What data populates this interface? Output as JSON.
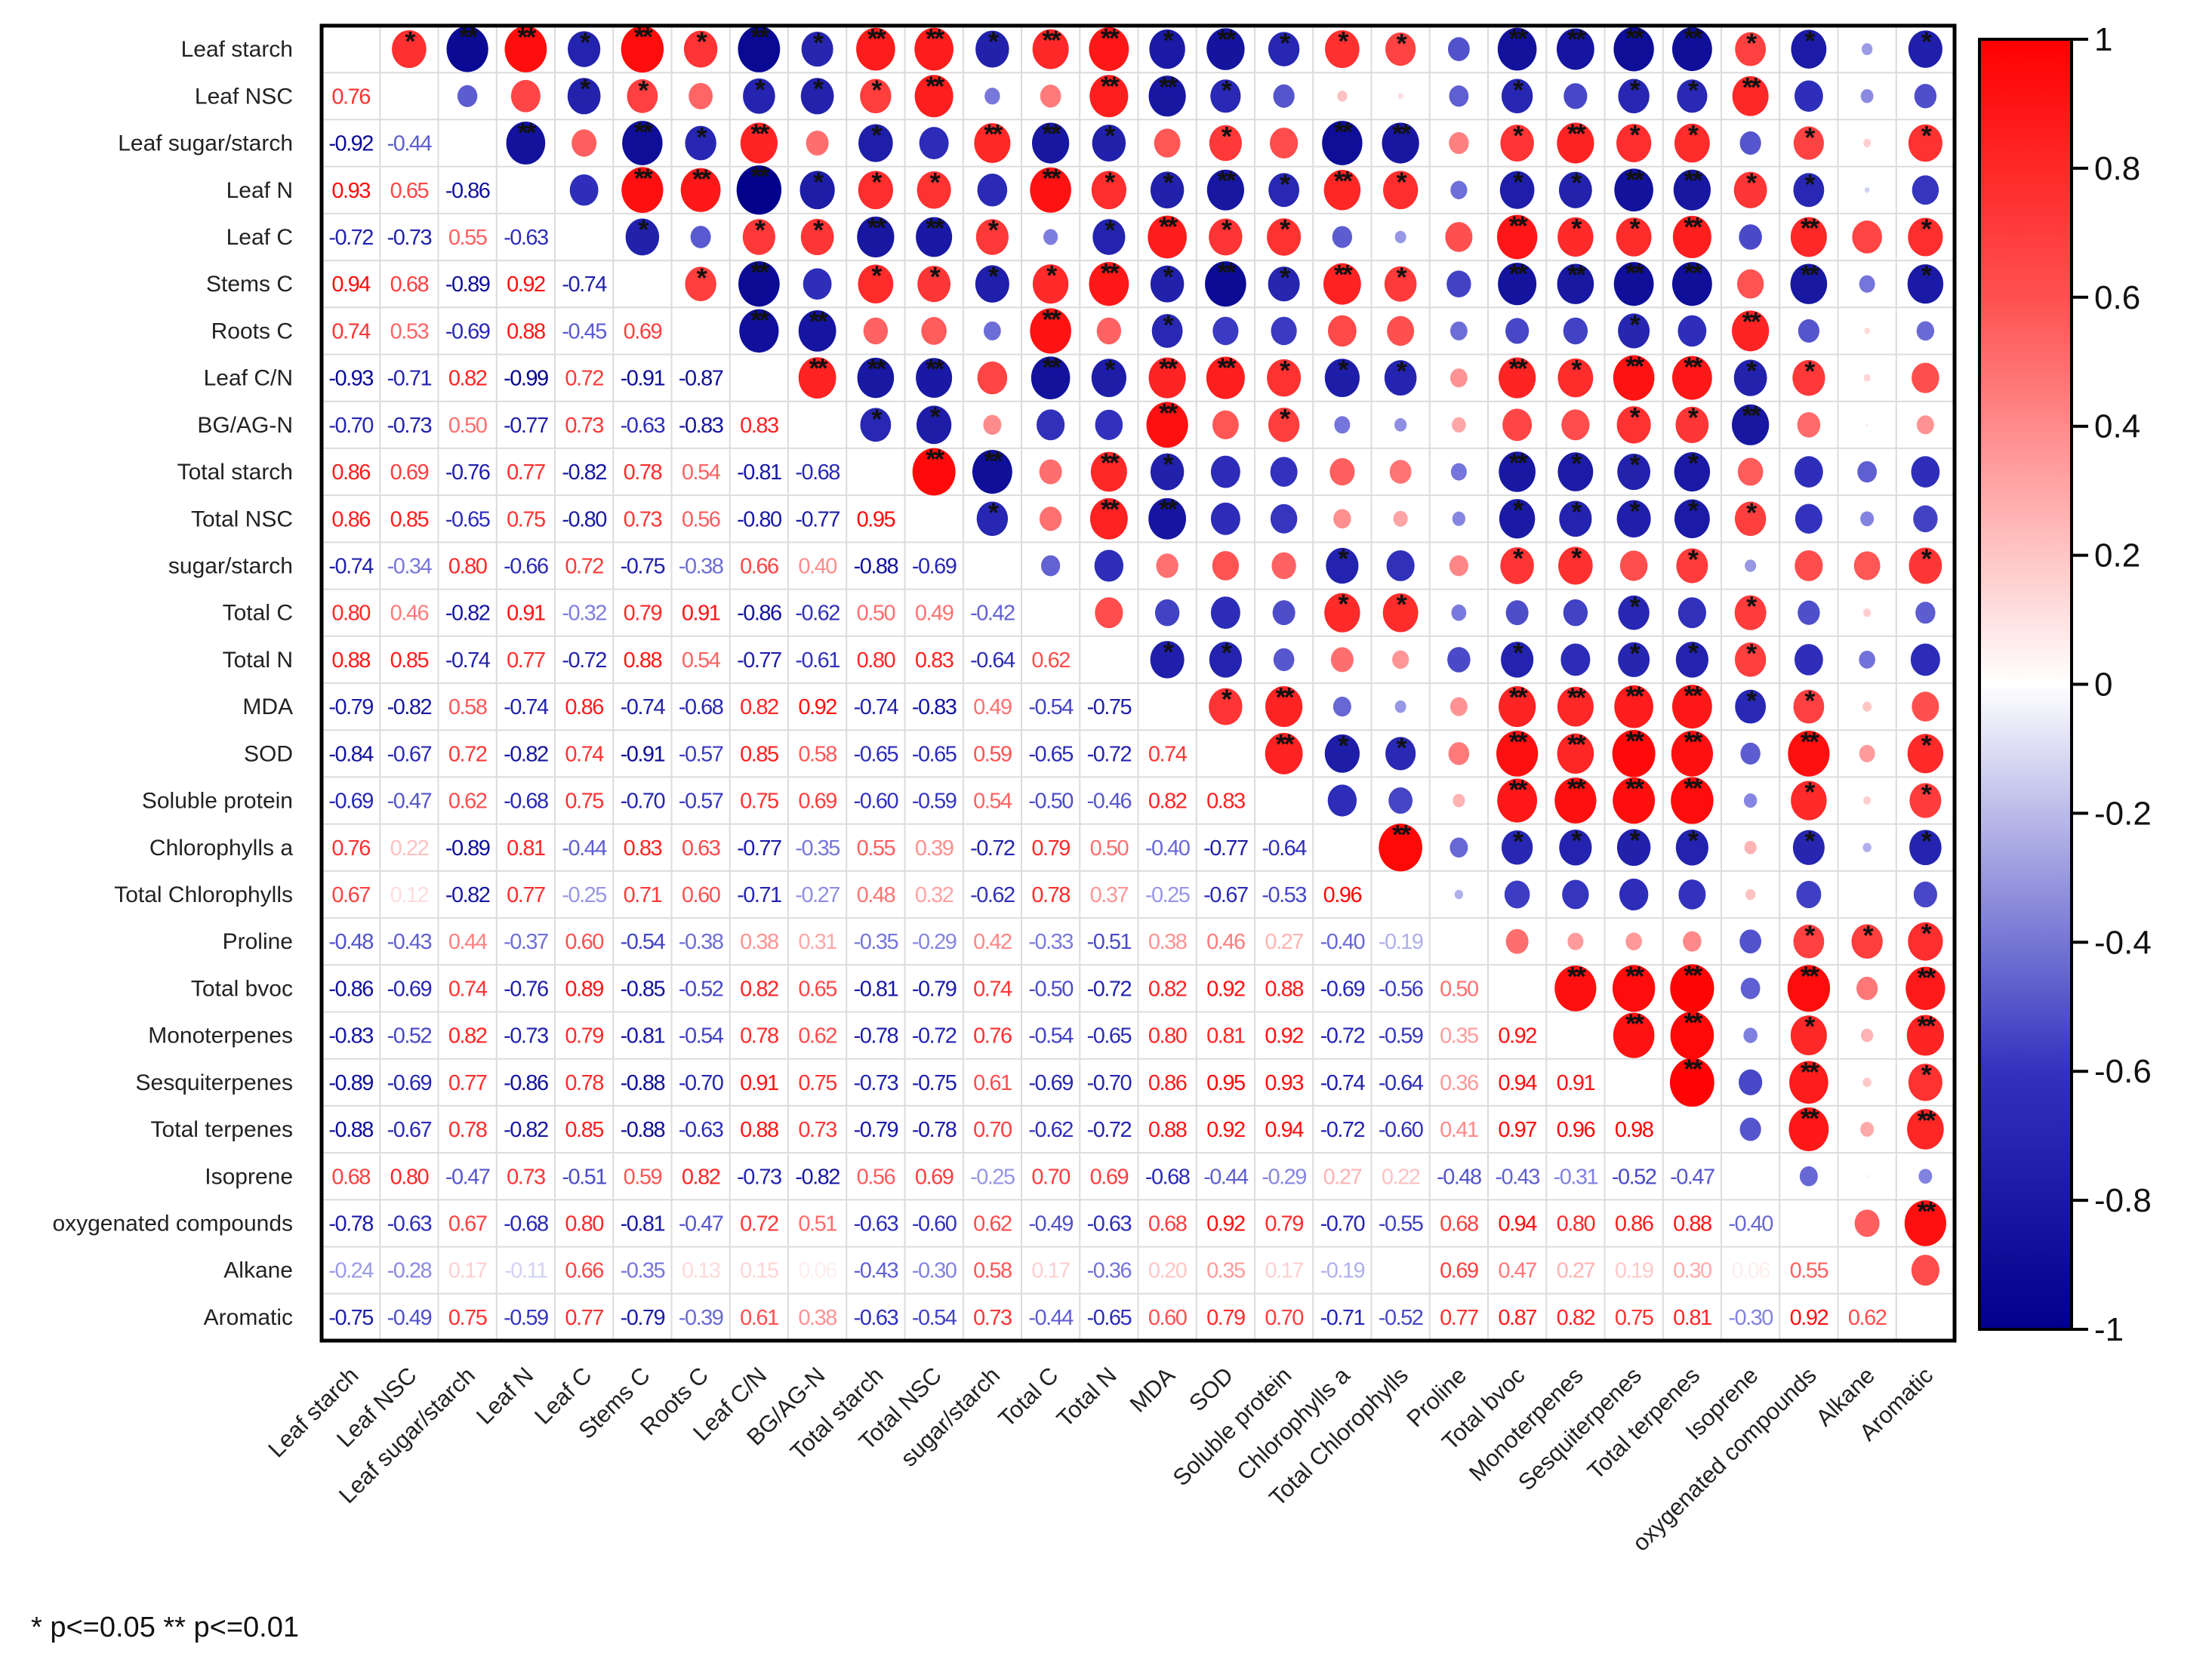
{
  "chart_data": {
    "type": "heatmap",
    "subtype": "correlation-matrix",
    "title": "",
    "variables": [
      "Leaf starch",
      "Leaf NSC",
      "Leaf sugar/starch",
      "Leaf N",
      "Leaf C",
      "Stems C",
      "Roots C",
      "Leaf C/N",
      "BG/AG-N",
      "Total starch",
      "Total NSC",
      "sugar/starch",
      "Total C",
      "Total N",
      "MDA",
      "SOD",
      "Soluble protein",
      "Chlorophylls a",
      "Total Chlorophylls",
      "Proline",
      "Total bvoc",
      "Monoterpenes",
      "Sesquiterpenes",
      "Total terpenes",
      "Isoprene",
      "oxygenated compounds",
      "Alkane",
      "Aromatic"
    ],
    "lower_triangle_values": [
      [],
      [
        0.76
      ],
      [
        -0.92,
        -0.44
      ],
      [
        0.93,
        0.65,
        -0.86
      ],
      [
        -0.72,
        -0.73,
        0.55,
        -0.63
      ],
      [
        0.94,
        0.68,
        -0.89,
        0.92,
        -0.74
      ],
      [
        0.74,
        0.53,
        -0.69,
        0.88,
        -0.45,
        0.69
      ],
      [
        -0.93,
        -0.71,
        0.82,
        -0.99,
        0.72,
        -0.91,
        -0.87
      ],
      [
        -0.7,
        -0.73,
        0.5,
        -0.77,
        0.73,
        -0.63,
        -0.83,
        0.83
      ],
      [
        0.86,
        0.69,
        -0.76,
        0.77,
        -0.82,
        0.78,
        0.54,
        -0.81,
        -0.68
      ],
      [
        0.86,
        0.85,
        -0.65,
        0.75,
        -0.8,
        0.73,
        0.56,
        -0.8,
        -0.77,
        0.95
      ],
      [
        -0.74,
        -0.34,
        0.8,
        -0.66,
        0.72,
        -0.75,
        -0.38,
        0.66,
        0.4,
        -0.88,
        -0.69
      ],
      [
        0.8,
        0.46,
        -0.82,
        0.91,
        -0.32,
        0.79,
        0.91,
        -0.86,
        -0.62,
        0.5,
        0.49,
        -0.42
      ],
      [
        0.88,
        0.85,
        -0.74,
        0.77,
        -0.72,
        0.88,
        0.54,
        -0.77,
        -0.61,
        0.8,
        0.83,
        -0.64,
        0.62
      ],
      [
        -0.79,
        -0.82,
        0.58,
        -0.74,
        0.86,
        -0.74,
        -0.68,
        0.82,
        0.92,
        -0.74,
        -0.83,
        0.49,
        -0.54,
        -0.75
      ],
      [
        -0.84,
        -0.67,
        0.72,
        -0.82,
        0.74,
        -0.91,
        -0.57,
        0.85,
        0.58,
        -0.65,
        -0.65,
        0.59,
        -0.65,
        -0.72,
        0.74
      ],
      [
        -0.69,
        -0.47,
        0.62,
        -0.68,
        0.75,
        -0.7,
        -0.57,
        0.75,
        0.69,
        -0.6,
        -0.59,
        0.54,
        -0.5,
        -0.46,
        0.82,
        0.83
      ],
      [
        0.76,
        0.22,
        -0.89,
        0.81,
        -0.44,
        0.83,
        0.63,
        -0.77,
        -0.35,
        0.55,
        0.39,
        -0.72,
        0.79,
        0.5,
        -0.4,
        -0.77,
        -0.64
      ],
      [
        0.67,
        0.12,
        -0.82,
        0.77,
        -0.25,
        0.71,
        0.6,
        -0.71,
        -0.27,
        0.48,
        0.32,
        -0.62,
        0.78,
        0.37,
        -0.25,
        -0.67,
        -0.53,
        0.96
      ],
      [
        -0.48,
        -0.43,
        0.44,
        -0.37,
        0.6,
        -0.54,
        -0.38,
        0.38,
        0.31,
        -0.35,
        -0.29,
        0.42,
        -0.33,
        -0.51,
        0.38,
        0.46,
        0.27,
        -0.4,
        -0.19
      ],
      [
        -0.86,
        -0.69,
        0.74,
        -0.76,
        0.89,
        -0.85,
        -0.52,
        0.82,
        0.65,
        -0.81,
        -0.79,
        0.74,
        -0.5,
        -0.72,
        0.82,
        0.92,
        0.88,
        -0.69,
        -0.56,
        0.5
      ],
      [
        -0.83,
        -0.52,
        0.82,
        -0.73,
        0.79,
        -0.81,
        -0.54,
        0.78,
        0.62,
        -0.78,
        -0.72,
        0.76,
        -0.54,
        -0.65,
        0.8,
        0.81,
        0.92,
        -0.72,
        -0.59,
        0.35,
        0.92
      ],
      [
        -0.89,
        -0.69,
        0.77,
        -0.86,
        0.78,
        -0.88,
        -0.7,
        0.91,
        0.75,
        -0.73,
        -0.75,
        0.61,
        -0.69,
        -0.7,
        0.86,
        0.95,
        0.93,
        -0.74,
        -0.64,
        0.36,
        0.94,
        0.91
      ],
      [
        -0.88,
        -0.67,
        0.78,
        -0.82,
        0.85,
        -0.88,
        -0.63,
        0.88,
        0.73,
        -0.79,
        -0.78,
        0.7,
        -0.62,
        -0.72,
        0.88,
        0.92,
        0.94,
        -0.72,
        -0.6,
        0.41,
        0.97,
        0.96,
        0.98
      ],
      [
        0.68,
        0.8,
        -0.47,
        0.73,
        -0.51,
        0.59,
        0.82,
        -0.73,
        -0.82,
        0.56,
        0.69,
        -0.25,
        0.7,
        0.69,
        -0.68,
        -0.44,
        -0.29,
        0.27,
        0.22,
        -0.48,
        -0.43,
        -0.31,
        -0.52,
        -0.47
      ],
      [
        -0.78,
        -0.63,
        0.67,
        -0.68,
        0.8,
        -0.81,
        -0.47,
        0.72,
        0.51,
        -0.63,
        -0.6,
        0.62,
        -0.49,
        -0.63,
        0.68,
        0.92,
        0.79,
        -0.7,
        -0.55,
        0.68,
        0.94,
        0.8,
        0.86,
        0.88,
        -0.4
      ],
      [
        -0.24,
        -0.28,
        0.17,
        -0.11,
        0.66,
        -0.35,
        0.13,
        0.15,
        0.06,
        -0.43,
        -0.3,
        0.58,
        0.17,
        -0.36,
        0.2,
        0.35,
        0.17,
        -0.19,
        null,
        0.69,
        0.47,
        0.27,
        0.19,
        0.3,
        0.06,
        0.55
      ],
      [
        -0.75,
        -0.49,
        0.75,
        -0.59,
        0.77,
        -0.79,
        -0.39,
        0.61,
        0.38,
        -0.63,
        -0.54,
        0.73,
        -0.44,
        -0.65,
        0.6,
        0.79,
        0.7,
        -0.71,
        -0.52,
        0.77,
        0.87,
        0.82,
        0.75,
        0.81,
        -0.3,
        0.92,
        0.62
      ]
    ],
    "upper_triangle_significance": [
      [
        "*",
        "**",
        "**",
        "*",
        "**",
        "*",
        "**",
        "*",
        "**",
        "**",
        "*",
        "**",
        "**",
        "*",
        "**",
        "*",
        "*",
        "*",
        "",
        "**",
        "**",
        "**",
        "**",
        "*",
        "*",
        "",
        "*"
      ],
      [
        "",
        "",
        "*",
        "*",
        "",
        "*",
        "*",
        "*",
        "**",
        "",
        "",
        "**",
        "**",
        "*",
        "",
        "",
        "",
        "",
        "*",
        "",
        "*",
        "*",
        "**",
        "",
        "",
        ""
      ],
      [
        "**",
        "",
        "**",
        "*",
        "**",
        "",
        "*",
        "",
        "**",
        "**",
        "*",
        "",
        "*",
        "",
        "**",
        "**",
        "",
        "*",
        "**",
        "*",
        "*",
        "",
        "*",
        "",
        "*"
      ],
      [
        "",
        "**",
        "**",
        "**",
        "*",
        "*",
        "*",
        "",
        "**",
        "*",
        "*",
        "**",
        "*",
        "**",
        "*",
        "",
        "*",
        "*",
        "**",
        "**",
        "*",
        "*",
        "",
        ""
      ],
      [
        "*",
        "",
        "*",
        "*",
        "**",
        "**",
        "*",
        "",
        "*",
        "**",
        "*",
        "*",
        "",
        "",
        "",
        "**",
        "*",
        "*",
        "**",
        "",
        "**",
        "",
        "*"
      ],
      [
        "*",
        "**",
        "",
        "*",
        "*",
        "*",
        "*",
        "**",
        "*",
        "**",
        "*",
        "**",
        "*",
        "",
        "**",
        "**",
        "**",
        "**",
        "",
        "**",
        "",
        "*"
      ],
      [
        "**",
        "**",
        "",
        "",
        "",
        "**",
        "",
        "*",
        "",
        "",
        "",
        "",
        "",
        "",
        "",
        "*",
        "",
        "**",
        "",
        "",
        ""
      ],
      [
        "**",
        "**",
        "**",
        "",
        "**",
        "*",
        "**",
        "**",
        "*",
        "*",
        "*",
        "",
        "**",
        "*",
        "**",
        "**",
        "*",
        "*",
        "",
        ""
      ],
      [
        "*",
        "*",
        "",
        "",
        "",
        "**",
        "",
        "*",
        "",
        "",
        "",
        "",
        "",
        "*",
        "*",
        "**",
        "",
        "",
        ""
      ],
      [
        "**",
        "**",
        "",
        "**",
        "*",
        "",
        "",
        "",
        "",
        "",
        "**",
        "*",
        "*",
        "*",
        "",
        "",
        "",
        ""
      ],
      [
        "*",
        "",
        "**",
        "**",
        "",
        "",
        "",
        "",
        "",
        "*",
        "*",
        "*",
        "*",
        "*",
        "",
        "",
        ""
      ],
      [
        "",
        "",
        "",
        "",
        "",
        "*",
        "",
        "",
        "*",
        "*",
        "",
        "*",
        "",
        "",
        "",
        "*"
      ],
      [
        "",
        "",
        "",
        "",
        "*",
        "*",
        "",
        "",
        "",
        "*",
        "",
        "*",
        "",
        "",
        ""
      ],
      [
        "*",
        "*",
        "",
        "",
        "",
        "",
        "*",
        "",
        "*",
        "*",
        "*",
        "",
        "",
        ""
      ],
      [
        "*",
        "**",
        "",
        "",
        "",
        "**",
        "**",
        "**",
        "**",
        "*",
        "*",
        "",
        ""
      ],
      [
        "**",
        "*",
        "*",
        "",
        "**",
        "**",
        "**",
        "**",
        "",
        "**",
        "",
        "*"
      ],
      [
        "",
        "",
        "",
        "**",
        "**",
        "**",
        "**",
        "",
        "*",
        "",
        "*"
      ],
      [
        "**",
        "",
        "*",
        "*",
        "*",
        "*",
        "",
        "*",
        "",
        "*"
      ],
      [
        "",
        "",
        "",
        "",
        "",
        "",
        "",
        "",
        ""
      ],
      [
        "",
        "",
        "",
        "",
        "",
        "*",
        "*",
        "*"
      ],
      [
        "**",
        "**",
        "**",
        "",
        "**",
        "",
        "**"
      ],
      [
        "**",
        "**",
        "",
        "*",
        "",
        "**"
      ],
      [
        "**",
        "",
        "**",
        "",
        "*"
      ],
      [
        "",
        "**",
        "",
        "**"
      ],
      [
        "",
        "",
        ""
      ],
      [
        "",
        "**"
      ],
      [
        ""
      ]
    ],
    "colorbar": {
      "range": [
        -1,
        1
      ],
      "ticks": [
        "1",
        "0.8",
        "0.6",
        "0.4",
        "0.2",
        "0",
        "-0.2",
        "-0.4",
        "-0.6",
        "-0.8",
        "-1"
      ],
      "colors": {
        "negative": "#00008b",
        "zero": "#ffffff",
        "positive": "#ff0000"
      }
    },
    "footnote": "* p<=0.05  ** p<=0.01",
    "grid": true
  }
}
